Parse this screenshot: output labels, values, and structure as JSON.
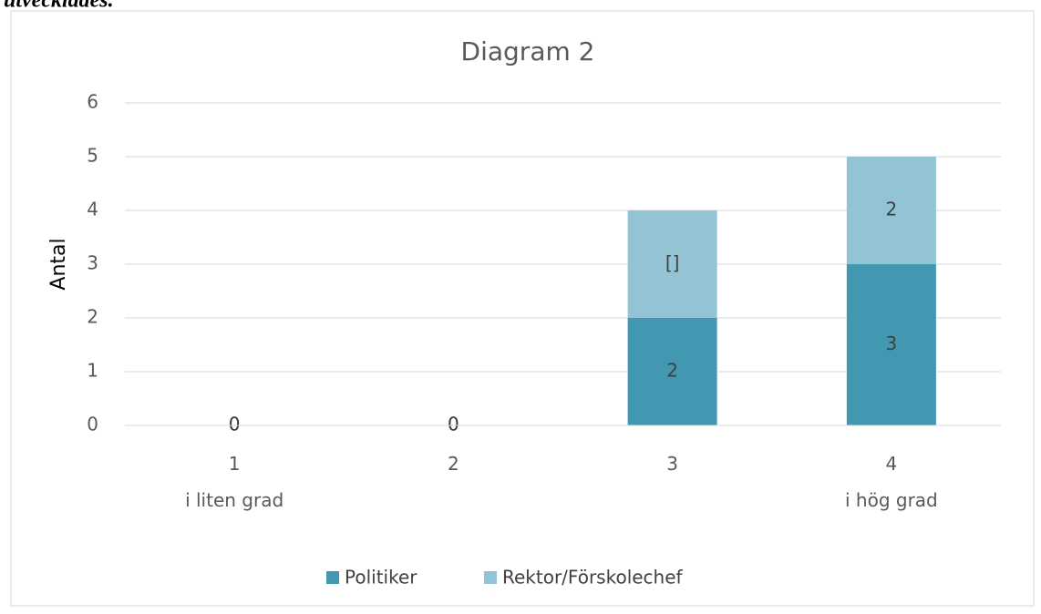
{
  "page_text": "utvecklades.",
  "chart_data": {
    "type": "stacked_bar",
    "title": "Diagram 2",
    "y_label": "Antal",
    "categories": [
      "1\ni liten grad",
      "2",
      "3",
      "4\ni hög grad"
    ],
    "series": [
      {
        "name": "Politiker",
        "color": "#4198b0",
        "values": [
          0,
          0,
          2,
          3
        ],
        "value_labels": [
          "0",
          "0",
          "2",
          "3"
        ]
      },
      {
        "name": "Rektor/Förskolechef",
        "color": "#93c4d5",
        "values": [
          0,
          0,
          2,
          2
        ],
        "value_labels": [
          "0",
          "0",
          "[]",
          "2"
        ]
      }
    ],
    "ylim": [
      0,
      6
    ],
    "yticks": [
      0,
      1,
      2,
      3,
      4,
      5,
      6
    ],
    "grid": true,
    "legend": "bottom"
  }
}
